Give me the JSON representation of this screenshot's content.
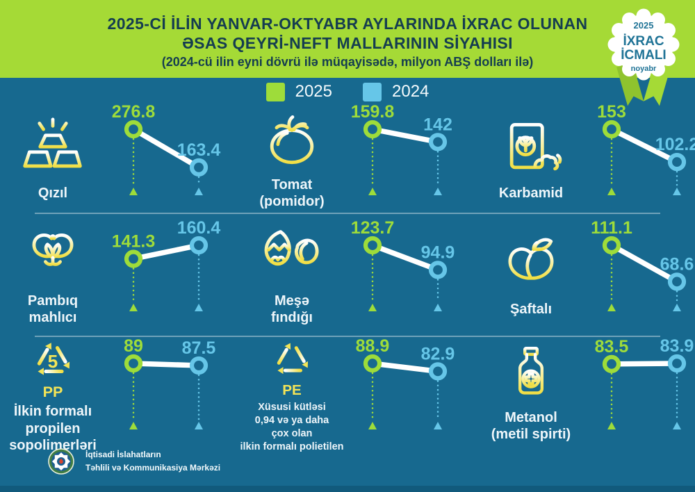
{
  "header": {
    "title_line1": "2025-Cİ İLİN YANVAR-OKTYABR AYLARINDA İXRAC OLUNAN",
    "title_line2": "ƏSAS QEYRİ-NEFT MALLARININ SİYAHISI",
    "title_line3": "(2024-cü ilin eyni dövrü ilə müqayisədə, milyon ABŞ dolları ilə)"
  },
  "badge": {
    "year": "2025",
    "title_line1": "İXRAC",
    "title_line2": "İCMALI",
    "subtitle": "noyabr"
  },
  "legend": {
    "items": [
      {
        "label": "2025",
        "color": "#9edc3a"
      },
      {
        "label": "2024",
        "color": "#66c6e8"
      }
    ]
  },
  "chart_data": {
    "type": "slope",
    "unit": "milyon ABŞ dolları",
    "series_labels": [
      "2025",
      "2024"
    ],
    "legend_position": "top",
    "items": [
      {
        "name": "Qızıl",
        "icon": "gold-bars-icon",
        "v2025": 276.8,
        "v2024": 163.4
      },
      {
        "name": "Tomat\n(pomidor)",
        "icon": "tomato-icon",
        "v2025": 159.8,
        "v2024": 142
      },
      {
        "name": "Karbamid",
        "icon": "fertilizer-bag-icon",
        "v2025": 153,
        "v2024": 102.2
      },
      {
        "name": "Pambıq\nmahlıcı",
        "icon": "cotton-icon",
        "v2025": 141.3,
        "v2024": 160.4
      },
      {
        "name": "Meşə\nfındığı",
        "icon": "hazelnut-icon",
        "v2025": 123.7,
        "v2024": 94.9
      },
      {
        "name": "Şaftalı",
        "icon": "peach-icon",
        "v2025": 111.1,
        "v2024": 68.6
      },
      {
        "name": "İlkin formalı\npropilen\nsopolimerləri",
        "icon": "recycling-pp-icon",
        "icon_number": "5",
        "icon_code": "PP",
        "v2025": 89,
        "v2024": 87.5
      },
      {
        "name": "Xüsusi kütləsi\n0,94 və ya daha\nçox olan\nilkin formalı polietilen",
        "icon": "recycling-pe-icon",
        "icon_code": "PE",
        "v2025": 88.9,
        "v2024": 82.9
      },
      {
        "name": "Metanol\n(metil spirti)",
        "icon": "methanol-bottle-icon",
        "v2025": 83.5,
        "v2024": 83.9
      }
    ]
  },
  "footer": {
    "org_line1": "İqtisadi İslahatların",
    "org_line2": "Təhlili və Kommunikasiya Mərkəzi"
  },
  "colors": {
    "background": "#17698f",
    "header_background": "#a5da36",
    "accent_2025": "#9edc3a",
    "accent_2024": "#66c6e8",
    "icon_yellow": "#f1df45",
    "title_text": "#153d50",
    "connector": "#ffffff",
    "bottom_bar": "#115a7c"
  }
}
